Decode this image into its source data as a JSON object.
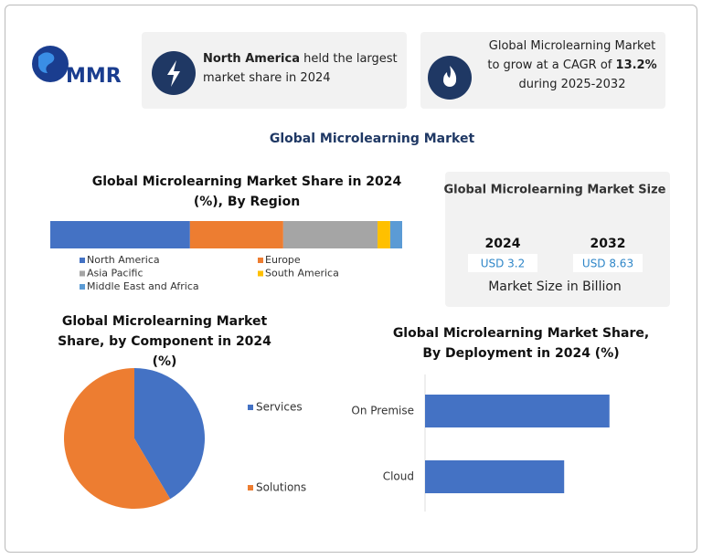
{
  "logo": "MMR",
  "cards": [
    {
      "bold": "North America",
      "text": "held the largest market share in 2024"
    },
    {
      "text": "Global Microlearning Market to grow at a CAGR of",
      "bold": "13.2%",
      "text_end": "during 2025-2032"
    }
  ],
  "title": "Global Microlearning Market",
  "market_size": {
    "title": "Global Microlearning Market Size",
    "years": [
      {
        "year": "2024",
        "value": "USD 3.2"
      },
      {
        "year": "2032",
        "value": "USD 8.63"
      }
    ],
    "caption": "Market Size in Billion"
  },
  "chart_data": [
    {
      "type": "stacked_bar",
      "orientation": "horizontal",
      "title": "Global Microlearning Market Share in 2024 (%), By Region",
      "xlim": [
        0,
        100
      ],
      "series": [
        {
          "name": "North America",
          "color": "#4472c4",
          "values": [
            39.7
          ]
        },
        {
          "name": "Europe",
          "color": "#ed7d31",
          "values": [
            26.5
          ]
        },
        {
          "name": "Asia Pacific",
          "color": "#a5a5a5",
          "values": [
            26.8
          ]
        },
        {
          "name": "South America",
          "color": "#ffc000",
          "values": [
            3.6
          ]
        },
        {
          "name": "Middle East and Africa",
          "color": "#5b9bd5",
          "values": [
            3.4
          ]
        }
      ]
    },
    {
      "type": "pie",
      "title": "Global Microlearning Market Share, by Component in 2024 (%)",
      "categories": [
        "Services",
        "Solutions"
      ],
      "values": [
        41.5,
        58.5
      ],
      "colors": [
        "#4472c4",
        "#ed7d31"
      ]
    },
    {
      "type": "bar",
      "orientation": "horizontal",
      "title": "Global Microlearning Market Share, By Deployment in 2024 (%)",
      "categories": [
        "On Premise",
        "Cloud"
      ],
      "values": [
        57,
        43
      ],
      "color": "#4472c4"
    }
  ]
}
